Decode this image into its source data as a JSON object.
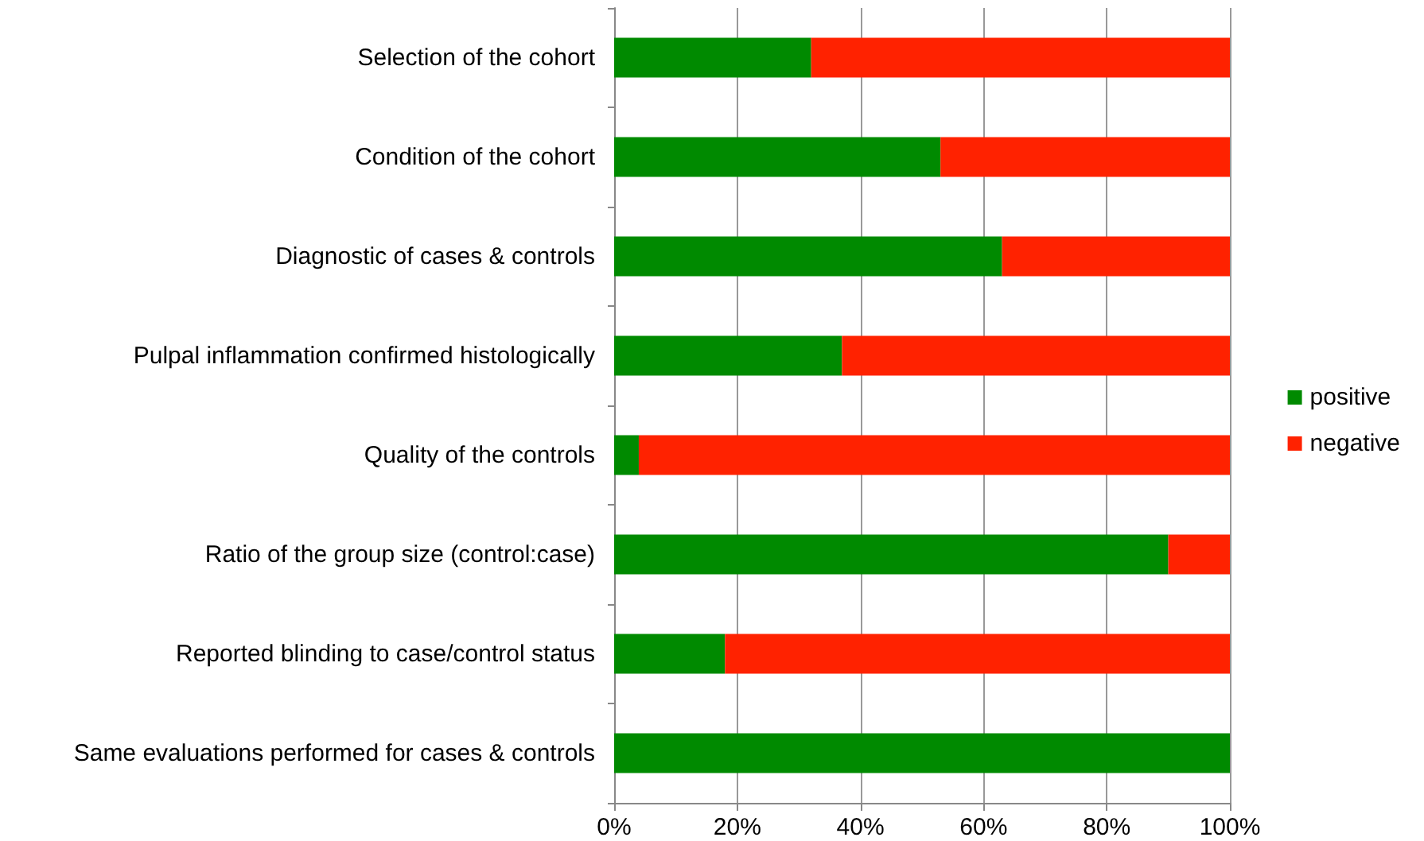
{
  "chart_data": {
    "type": "bar",
    "orientation": "horizontal",
    "stacked": true,
    "categories": [
      "Selection of the cohort",
      "Condition of the cohort",
      "Diagnostic of cases & controls",
      "Pulpal inflammation confirmed histologically",
      "Quality of the controls",
      "Ratio of the group size (control:case)",
      "Reported blinding to case/control status",
      "Same evaluations performed for cases & controls"
    ],
    "series": [
      {
        "name": "positive",
        "color": "#008a00",
        "values": [
          32,
          53,
          63,
          37,
          4,
          90,
          18,
          100
        ]
      },
      {
        "name": "negative",
        "color": "#ff2200",
        "values": [
          68,
          47,
          37,
          63,
          96,
          10,
          82,
          0
        ]
      }
    ],
    "xlim": [
      0,
      100
    ],
    "xticks": [
      {
        "value": 0,
        "label": "0%"
      },
      {
        "value": 20,
        "label": "20%"
      },
      {
        "value": 40,
        "label": "40%"
      },
      {
        "value": 60,
        "label": "60%"
      },
      {
        "value": 80,
        "label": "80%"
      },
      {
        "value": 100,
        "label": "100%"
      }
    ],
    "grid": "x",
    "legend": "right"
  }
}
